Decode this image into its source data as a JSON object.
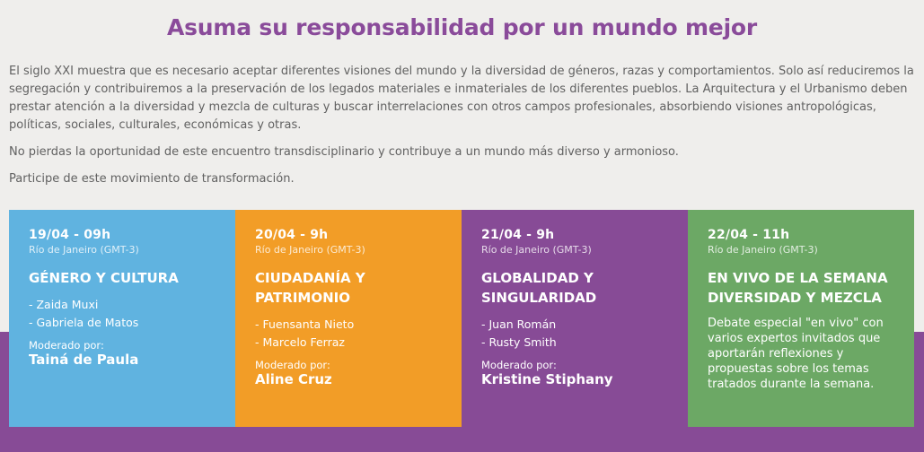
{
  "header": {
    "title": "Asuma su responsabilidad por un mundo mejor"
  },
  "intro": {
    "paragraph_1": "El siglo XXI muestra que es necesario aceptar diferentes visiones del mundo y la diversidad de géneros, razas y comportamientos. Solo así reduciremos la segregación y contribuiremos a la preservación de los legados materiales e inmateriales de los diferentes pueblos. La Arquitectura y el Urbanismo deben prestar atención a la diversidad y mezcla de culturas y buscar interrelaciones con otros campos profesionales, absorbiendo visiones antropológicas, políticas, sociales, culturales, económicas y otras.",
    "paragraph_2": "No pierdas la oportunidad de este encuentro transdisciplinario y contribuye a un mundo más diverso y armonioso.",
    "paragraph_3": "Participe de este movimiento de transformación."
  },
  "cards": [
    {
      "date": "19/04 - 09h",
      "timezone": "Río de Janeiro (GMT-3)",
      "title": "GÉNERO Y CULTURA",
      "speakers": [
        "- Zaida Muxi",
        "- Gabriela de Matos"
      ],
      "moderator_label": "Moderado por:",
      "moderator": "Tainá de Paula",
      "color": "#60b3e0"
    },
    {
      "date": "20/04 - 9h",
      "timezone": "Río de Janeiro (GMT-3)",
      "title": "CIUDADANÍA Y PATRIMONIO",
      "speakers": [
        "- Fuensanta Nieto",
        "- Marcelo Ferraz"
      ],
      "moderator_label": "Moderado por:",
      "moderator": "Aline Cruz",
      "color": "#f29d27"
    },
    {
      "date": "21/04 - 9h",
      "timezone": "Río de Janeiro (GMT-3)",
      "title": "GLOBALIDAD Y SINGULARIDAD",
      "speakers": [
        "- Juan Román",
        "- Rusty Smith"
      ],
      "moderator_label": "Moderado por:",
      "moderator": "Kristine Stiphany",
      "color": "#874b96"
    },
    {
      "date": "22/04 - 11h",
      "timezone": "Río de Janeiro (GMT-3)",
      "title": "EN VIVO DE LA SEMANA DIVERSIDAD Y MEZCLA",
      "description": "Debate especial \"en vivo\" con varios expertos invitados que aportarán reflexiones y propuestas sobre los temas tratados durante la semana.",
      "color": "#6ca865"
    }
  ],
  "colors": {
    "title_purple": "#8a4b9a",
    "band_purple": "#874b96",
    "background": "#efeeec"
  }
}
